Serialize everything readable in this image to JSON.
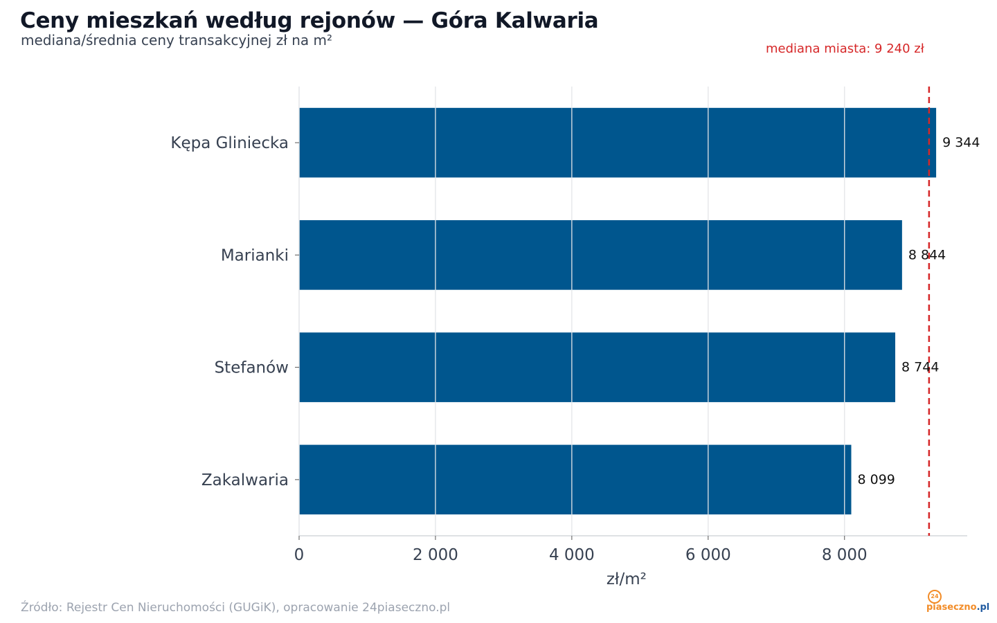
{
  "header": {
    "title": "Ceny mieszkań według rejonów — Góra Kalwaria",
    "subtitle": "mediana/średnia ceny transakcyjnej zł na m²"
  },
  "footer": {
    "source": "Źródło: Rejestr Cen Nieruchomości (GUGiK), opracowanie 24piaseczno.pl",
    "logo_badge": "24",
    "logo_text_a": "piaseczno",
    "logo_text_b": ".pl"
  },
  "chart_data": {
    "type": "bar",
    "orientation": "horizontal",
    "categories": [
      "Kępa Gliniecka",
      "Marianki",
      "Stefanów",
      "Zakalwaria"
    ],
    "values": [
      9344,
      8844,
      8744,
      8099
    ],
    "value_labels": [
      "9 344",
      "8 844",
      "8 744",
      "8 099"
    ],
    "xlabel": "zł/m²",
    "xlim": [
      0,
      9800
    ],
    "xticks": [
      0,
      2000,
      4000,
      6000,
      8000
    ],
    "xtick_labels": [
      "0",
      "2 000",
      "4 000",
      "6 000",
      "8 000"
    ],
    "grid": true,
    "bar_color": "#00568e",
    "reference_line": {
      "value": 9240,
      "label": "mediana miasta: 9 240 zł",
      "color": "#d62728",
      "style": "dashed"
    }
  }
}
